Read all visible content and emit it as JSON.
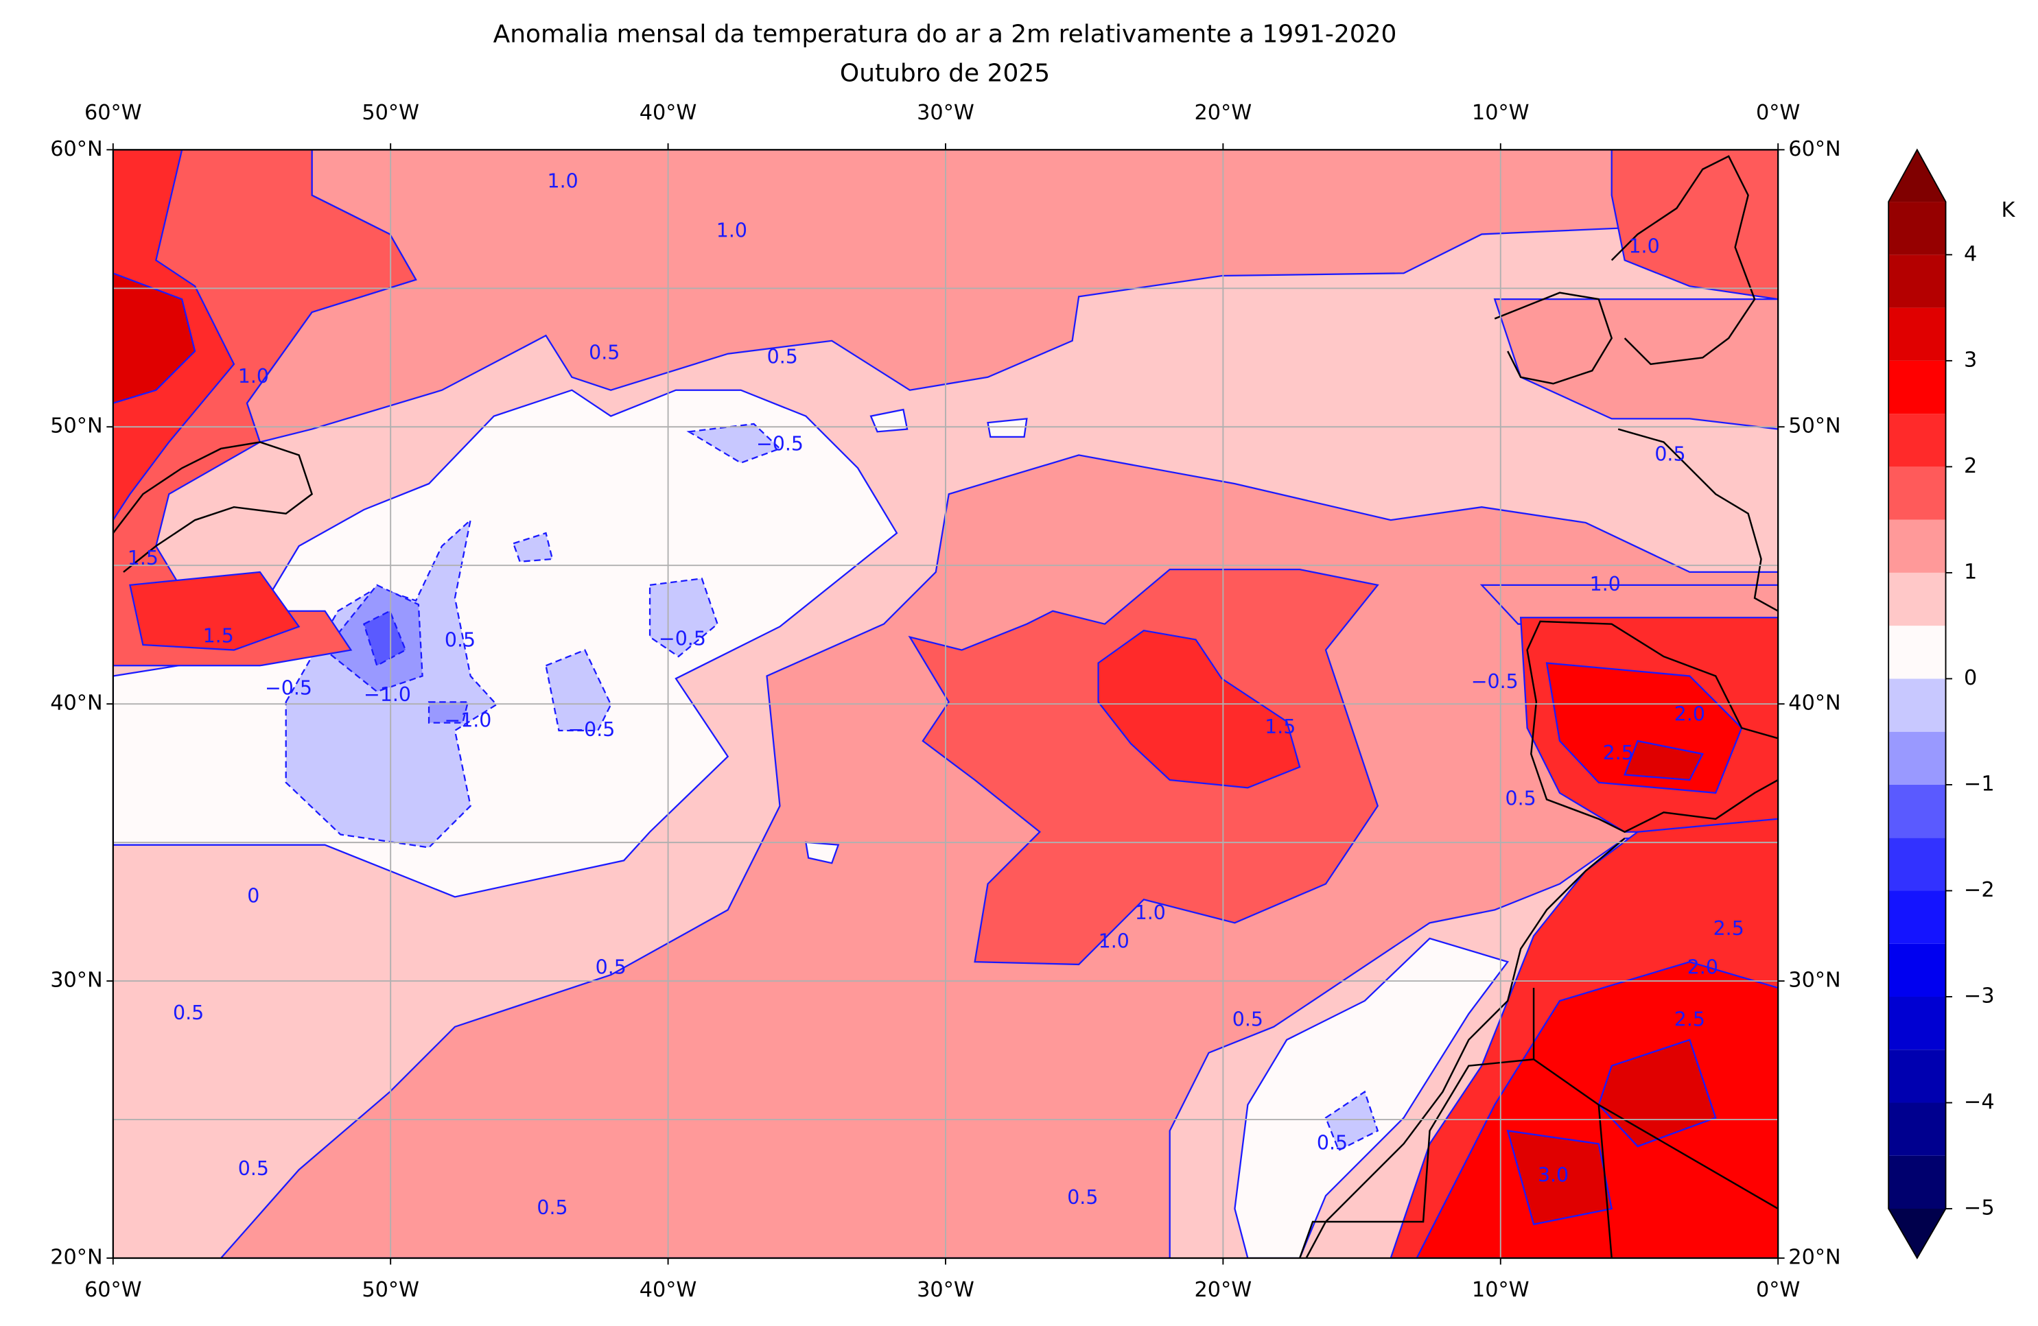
{
  "map": {
    "title": "Anomalia mensal da temperatura do ar a 2m relativamente a 1991-2020",
    "subtitle": "Outubro de 2025",
    "lon_ticks": [
      {
        "value": -60,
        "label": "60°W"
      },
      {
        "value": -50,
        "label": "50°W"
      },
      {
        "value": -40,
        "label": "40°W"
      },
      {
        "value": -30,
        "label": "30°W"
      },
      {
        "value": -20,
        "label": "20°W"
      },
      {
        "value": -10,
        "label": "10°W"
      },
      {
        "value": 0,
        "label": "0°W"
      }
    ],
    "lat_ticks": [
      {
        "value": 20,
        "label": "20°N"
      },
      {
        "value": 30,
        "label": "30°N"
      },
      {
        "value": 40,
        "label": "40°N"
      },
      {
        "value": 50,
        "label": "50°N"
      },
      {
        "value": 60,
        "label": "60°N"
      }
    ],
    "xlim": [
      -60,
      0
    ],
    "ylim": [
      20,
      60
    ],
    "grid": true,
    "colorbar": {
      "unit": "K",
      "levels": [
        -5,
        -4.5,
        -4,
        -3.5,
        -3,
        -2.5,
        -2,
        -1.5,
        -1,
        -0.5,
        0,
        0.5,
        1,
        1.5,
        2,
        2.5,
        3,
        3.5,
        4,
        4.5
      ],
      "colors": [
        "#00004c",
        "#00006e",
        "#00008f",
        "#0000b0",
        "#0000d2",
        "#0000f0",
        "#1414ff",
        "#3232ff",
        "#5a5aff",
        "#9999ff",
        "#c8c8ff",
        "#fffafa",
        "#ffc8c8",
        "#ff9999",
        "#ff5a5a",
        "#ff2a2a",
        "#ff0000",
        "#e00000",
        "#b40000",
        "#960000",
        "#800000"
      ],
      "ticks": [
        {
          "value": -5,
          "label": "−5"
        },
        {
          "value": -4,
          "label": "−4"
        },
        {
          "value": -3,
          "label": "−3"
        },
        {
          "value": -2,
          "label": "−2"
        },
        {
          "value": -1,
          "label": "−1"
        },
        0,
        1,
        2,
        3,
        4
      ],
      "extend": "both"
    },
    "contour_labels": [
      "1.0",
      "1.0",
      "0.5",
      "0.5",
      "−0.5",
      "1.0",
      "1.5",
      "1.5",
      "0.5",
      "−1.0",
      "−1.0",
      "−0.5",
      "−0.5",
      "−0.5",
      "0",
      "0.5",
      "0.5",
      "0.5",
      "0.5",
      "0.5",
      "1.0",
      "1.0",
      "1.5",
      "1.0",
      "−0.5",
      "0.5",
      "2.5",
      "2.0",
      "0.5",
      "0.5",
      "3.0",
      "2.5",
      "2.5",
      "2.0",
      "0.5",
      "1.0"
    ]
  }
}
